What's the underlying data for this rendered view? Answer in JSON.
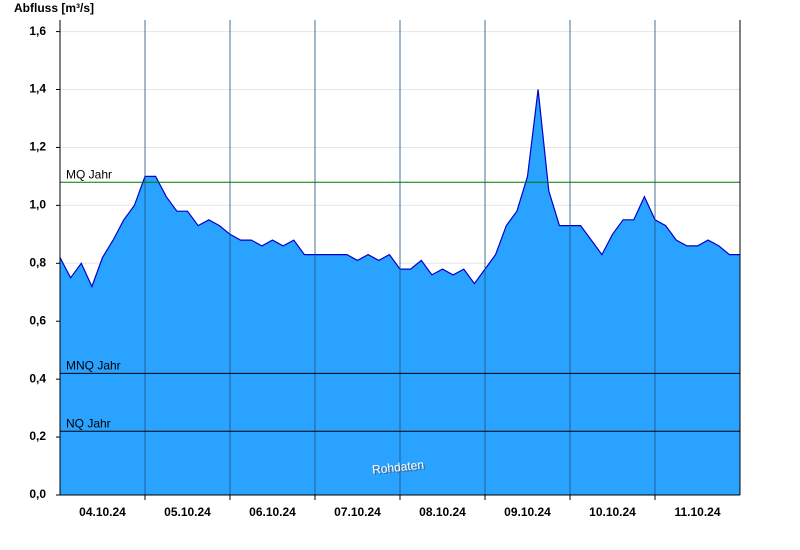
{
  "chart_data": {
    "type": "area",
    "y_label": "Abfluss [m³/s]",
    "watermark": "Rohdaten",
    "xlim": [
      0,
      8
    ],
    "x": [
      0,
      0.125,
      0.25,
      0.375,
      0.5,
      0.625,
      0.75,
      0.875,
      1,
      1.125,
      1.25,
      1.375,
      1.5,
      1.625,
      1.75,
      1.875,
      2,
      2.125,
      2.25,
      2.375,
      2.5,
      2.625,
      2.75,
      2.875,
      3,
      3.125,
      3.25,
      3.375,
      3.5,
      3.625,
      3.75,
      3.875,
      4,
      4.125,
      4.25,
      4.375,
      4.5,
      4.625,
      4.75,
      4.875,
      5,
      5.125,
      5.25,
      5.375,
      5.5,
      5.625,
      5.75,
      5.875,
      6,
      6.125,
      6.25,
      6.375,
      6.5,
      6.625,
      6.75,
      6.875,
      7,
      7.125,
      7.25,
      7.375,
      7.5,
      7.625,
      7.75,
      7.875,
      8
    ],
    "series": [
      {
        "name": "Abfluss",
        "color": "#29a3ff",
        "line_color": "#0000cc",
        "values": [
          0.82,
          0.75,
          0.8,
          0.72,
          0.82,
          0.88,
          0.95,
          1.0,
          1.1,
          1.1,
          1.03,
          0.98,
          0.98,
          0.93,
          0.95,
          0.93,
          0.9,
          0.88,
          0.88,
          0.86,
          0.88,
          0.86,
          0.88,
          0.83,
          0.83,
          0.83,
          0.83,
          0.83,
          0.81,
          0.83,
          0.81,
          0.83,
          0.78,
          0.78,
          0.81,
          0.76,
          0.78,
          0.76,
          0.78,
          0.73,
          0.78,
          0.83,
          0.93,
          0.98,
          1.1,
          1.4,
          1.05,
          0.93,
          0.93,
          0.93,
          0.88,
          0.83,
          0.9,
          0.95,
          0.95,
          1.03,
          0.95,
          0.93,
          0.88,
          0.86,
          0.86,
          0.88,
          0.86,
          0.83,
          0.83
        ]
      }
    ],
    "xticks": [
      {
        "value": 0.5,
        "label": "04.10.24"
      },
      {
        "value": 1.5,
        "label": "05.10.24"
      },
      {
        "value": 2.5,
        "label": "06.10.24"
      },
      {
        "value": 3.5,
        "label": "07.10.24"
      },
      {
        "value": 4.5,
        "label": "08.10.24"
      },
      {
        "value": 5.5,
        "label": "09.10.24"
      },
      {
        "value": 6.5,
        "label": "10.10.24"
      },
      {
        "value": 7.5,
        "label": "11.10.24"
      }
    ],
    "xgrid": [
      1,
      2,
      3,
      4,
      5,
      6,
      7
    ],
    "ylim": [
      0,
      1.64
    ],
    "yticks": [
      {
        "value": 0,
        "label": "0,0"
      },
      {
        "value": 0.2,
        "label": "0,2"
      },
      {
        "value": 0.4,
        "label": "0,4"
      },
      {
        "value": 0.6,
        "label": "0,6"
      },
      {
        "value": 0.8,
        "label": "0,8"
      },
      {
        "value": 1.0,
        "label": "1,0"
      },
      {
        "value": 1.2,
        "label": "1,2"
      },
      {
        "value": 1.4,
        "label": "1,4"
      },
      {
        "value": 1.6,
        "label": "1,6"
      }
    ],
    "grid": true,
    "reference_lines": [
      {
        "label": "MQ Jahr",
        "value": 1.08,
        "color": "#007700"
      },
      {
        "label": "MNQ Jahr",
        "value": 0.42,
        "color": "#000000"
      },
      {
        "label": "NQ Jahr",
        "value": 0.22,
        "color": "#000000"
      }
    ]
  }
}
